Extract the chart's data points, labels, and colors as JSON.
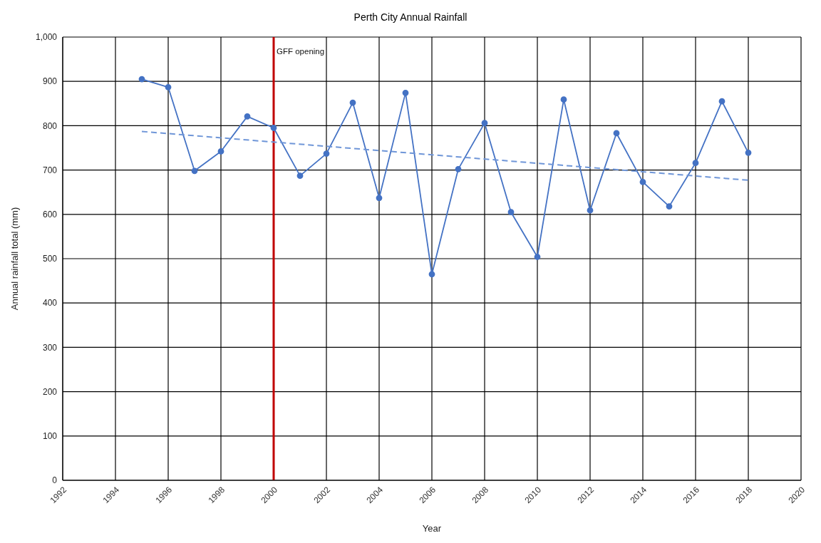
{
  "chart_data": {
    "type": "line",
    "title": "Perth City Annual Rainfall",
    "xlabel": "Year",
    "ylabel": "Annual rainfall total (mm)",
    "x": [
      1995,
      1996,
      1997,
      1998,
      1999,
      2000,
      2001,
      2002,
      2003,
      2004,
      2005,
      2006,
      2007,
      2008,
      2009,
      2010,
      2011,
      2012,
      2013,
      2014,
      2015,
      2016,
      2017,
      2018
    ],
    "series": [
      {
        "color": "#4472c4",
        "values": [
          905,
          887,
          698,
          742,
          821,
          795,
          687,
          737,
          852,
          637,
          874,
          465,
          702,
          806,
          605,
          504,
          859,
          609,
          783,
          673,
          618,
          716,
          855,
          739
        ]
      },
      {
        "type": "line",
        "color": "#6f96d8",
        "x": [
          1995,
          2018
        ],
        "values": [
          787,
          677
        ],
        "line_style": "dashed",
        "marker": "none"
      }
    ],
    "xlim": [
      1992,
      2020
    ],
    "xticks": [
      1992,
      1994,
      1996,
      1998,
      2000,
      2002,
      2004,
      2006,
      2008,
      2010,
      2012,
      2014,
      2016,
      2018,
      2020
    ],
    "ylim": [
      0,
      1000
    ],
    "yticks": [
      0,
      100,
      200,
      300,
      400,
      500,
      600,
      700,
      800,
      900,
      {
        "value": 1000,
        "label": "1,000"
      }
    ],
    "ref_lines": [
      {
        "axis": "x",
        "value": 2000,
        "label": "GFF opening",
        "color": "#c00000"
      }
    ],
    "grid": true,
    "marker": "circle",
    "line_style": "solid"
  }
}
